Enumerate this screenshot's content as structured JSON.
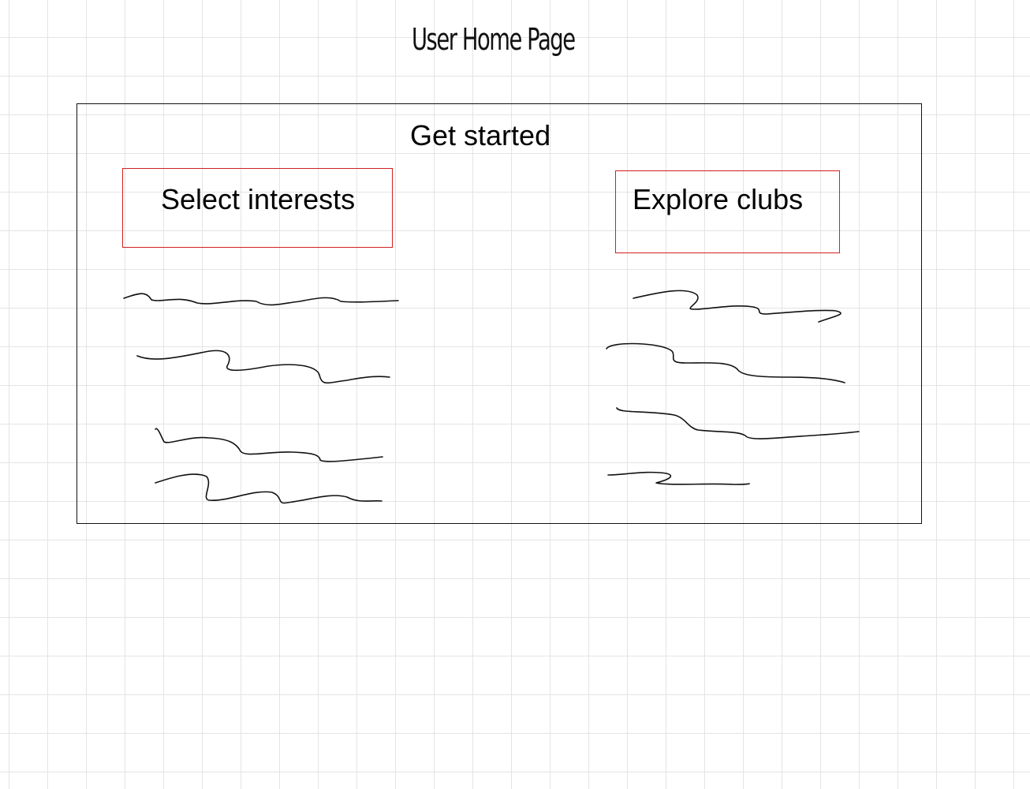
{
  "page": {
    "title": "User Home Page"
  },
  "panel": {
    "heading": "Get started",
    "actions": [
      {
        "label": "Select interests"
      },
      {
        "label": "Explore clubs"
      }
    ]
  },
  "colors": {
    "frame": "#111111",
    "action_border": "#d42020",
    "grid": "#e4e4e4",
    "background": "#ffffff"
  }
}
